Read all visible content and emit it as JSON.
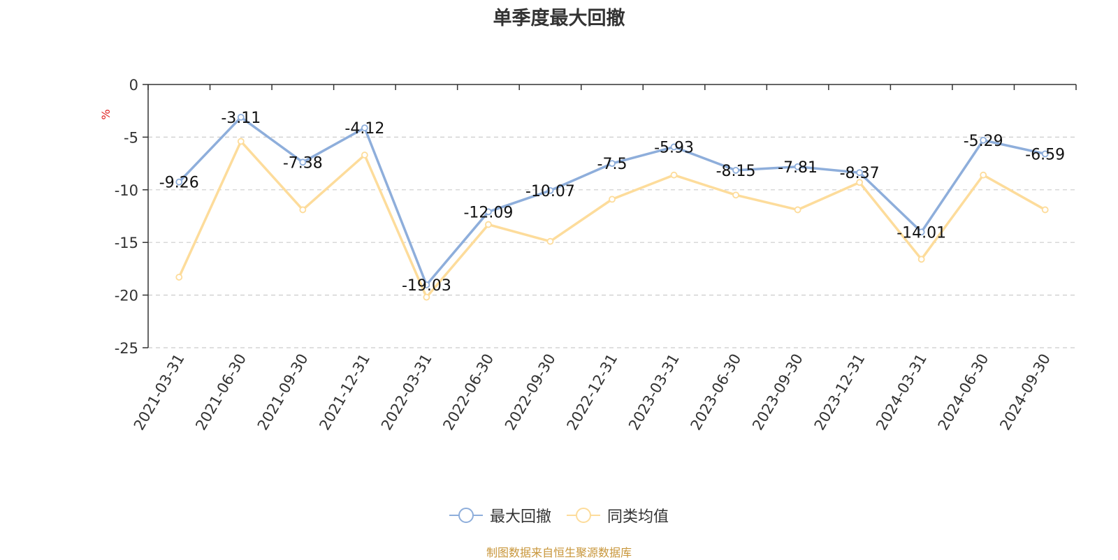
{
  "chart_data": {
    "type": "line",
    "title": "单季度最大回撤",
    "ylabel": "%",
    "xlabel": "",
    "categories": [
      "2021-03-31",
      "2021-06-30",
      "2021-09-30",
      "2021-12-31",
      "2022-03-31",
      "2022-06-30",
      "2022-09-30",
      "2022-12-31",
      "2023-03-31",
      "2023-06-30",
      "2023-09-30",
      "2023-12-31",
      "2024-03-31",
      "2024-06-30",
      "2024-09-30"
    ],
    "series": [
      {
        "name": "最大回撤",
        "color": "#8eaedb",
        "labeled": true,
        "values": [
          -9.26,
          -3.11,
          -7.38,
          -4.12,
          -19.03,
          -12.09,
          -10.07,
          -7.5,
          -5.93,
          -8.15,
          -7.81,
          -8.37,
          -14.01,
          -5.29,
          -6.59
        ]
      },
      {
        "name": "同类均值",
        "color": "#fddc9b",
        "labeled": false,
        "values": [
          -18.3,
          -5.4,
          -11.9,
          -6.7,
          -20.2,
          -13.3,
          -14.9,
          -10.9,
          -8.6,
          -10.5,
          -11.9,
          -9.3,
          -16.6,
          -8.6,
          -11.9
        ]
      }
    ],
    "ylim": [
      -25,
      0
    ],
    "yticks": [
      0,
      -5,
      -10,
      -15,
      -20,
      -25
    ],
    "grid": true,
    "legend_position": "bottom"
  },
  "source": "制图数据来自恒生聚源数据库"
}
